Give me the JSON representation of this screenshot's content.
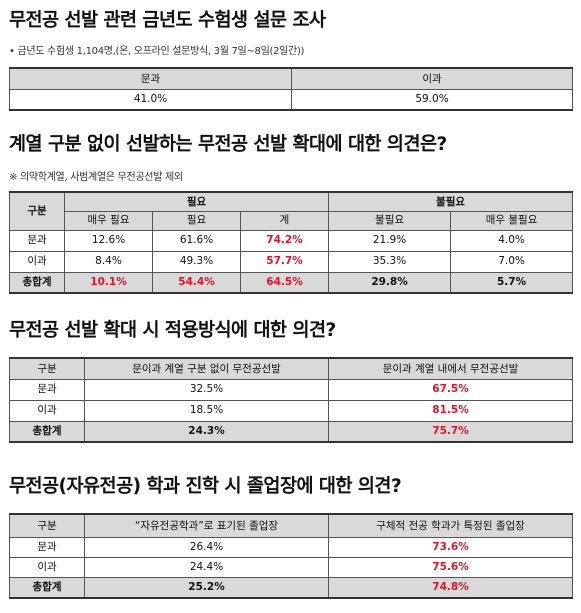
{
  "s1": {
    "title": "무전공 선발 관련 금년도 수험생 설문 조사",
    "note": "• 금년도 수험생 1,104명,(온, 오프라인 설문방식, 3월 7일~8일(2일간))",
    "headers": [
      "문과",
      "이과"
    ],
    "values": [
      "41.0%",
      "59.0%"
    ]
  },
  "s2": {
    "title": "계열 구분 없이 선발하는 무전공 선발 확대에 대한 의견은?",
    "note": "※ 의약학계열, 사범계열은 무전공선발 제외",
    "header_group": "구분",
    "header_need": "필요",
    "header_noneed": "불필요",
    "sub": [
      "매우 필요",
      "필요",
      "계",
      "불필요",
      "매우 불필요"
    ],
    "rows": [
      {
        "label": "문과",
        "cells": [
          "12.6%",
          "61.6%",
          "74.2%",
          "21.9%",
          "4.0%"
        ]
      },
      {
        "label": "이과",
        "cells": [
          "8.4%",
          "49.3%",
          "57.7%",
          "35.3%",
          "7.0%"
        ]
      },
      {
        "label": "총합계",
        "cells": [
          "10.1%",
          "54.4%",
          "64.5%",
          "29.8%",
          "5.7%"
        ]
      }
    ]
  },
  "s3": {
    "title": "무전공 선발 확대 시 적용방식에 대한 의견?",
    "headers": [
      "구분",
      "문이과 계열 구분 없이 무전공선발",
      "문이과 계열 내에서 무전공선발"
    ],
    "rows": [
      {
        "label": "문과",
        "a": "32.5%",
        "b": "67.5%"
      },
      {
        "label": "이과",
        "a": "18.5%",
        "b": "81.5%"
      },
      {
        "label": "총합계",
        "a": "24.3%",
        "b": "75.7%"
      }
    ]
  },
  "s4": {
    "title": "무전공(자유전공) 학과 진학 시 졸업장에 대한 의견?",
    "headers": [
      "구분",
      "“자유전공학과”로 표기된 졸업장",
      "구체적 전공 학과가 특정된 졸업장"
    ],
    "rows": [
      {
        "label": "문과",
        "a": "26.4%",
        "b": "73.6%"
      },
      {
        "label": "이과",
        "a": "24.4%",
        "b": "75.6%"
      },
      {
        "label": "총합계",
        "a": "25.2%",
        "b": "74.8%"
      }
    ]
  },
  "colors": {
    "highlight": "#e8102a",
    "header_bg": "#d9d9d9"
  }
}
